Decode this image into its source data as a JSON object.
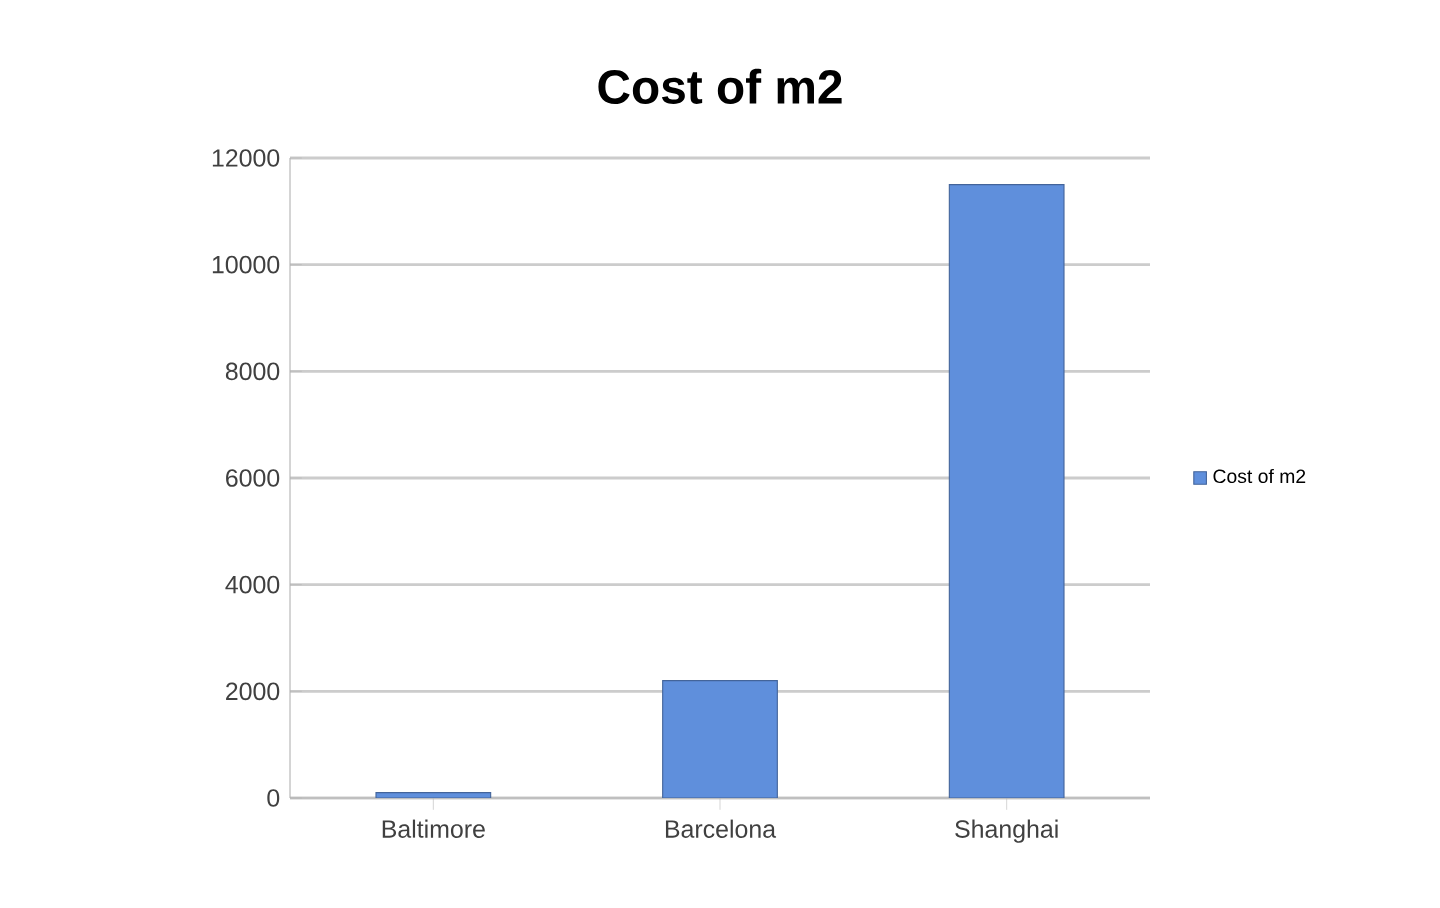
{
  "chart_data": {
    "type": "bar",
    "title": "Cost of m2",
    "categories": [
      "Baltimore",
      "Barcelona",
      "Shanghai"
    ],
    "series": [
      {
        "name": "Cost of m2",
        "color": "#5f8fdc",
        "values": [
          100,
          2200,
          11500
        ]
      }
    ],
    "ylim": [
      0,
      12000
    ],
    "yticks": [
      0,
      2000,
      4000,
      6000,
      8000,
      10000,
      12000
    ],
    "grid": "y",
    "legend": "right"
  }
}
